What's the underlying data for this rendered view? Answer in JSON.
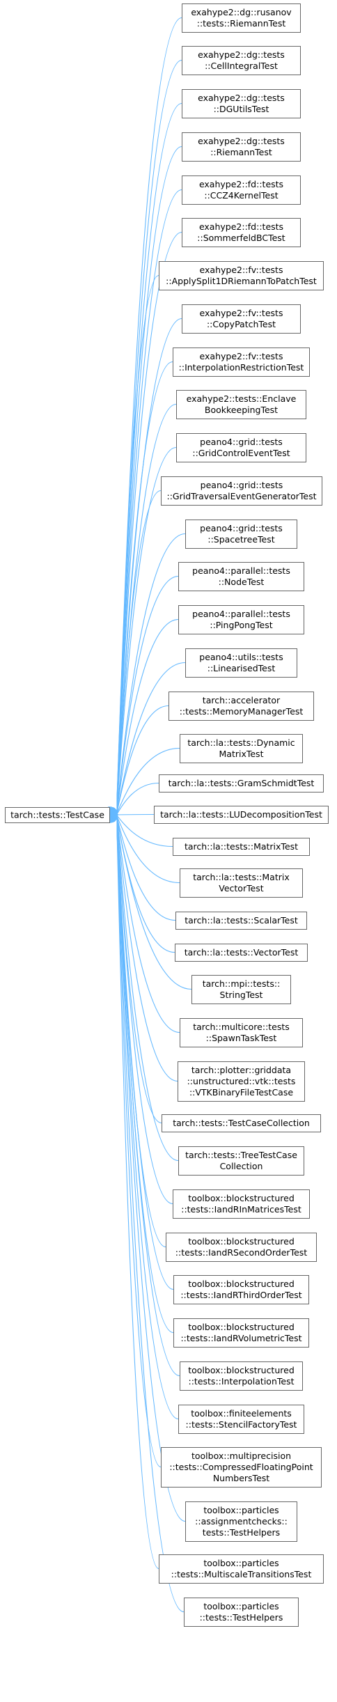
{
  "base_class": {
    "lines": [
      "tarch::tests::TestCase"
    ]
  },
  "derived_classes": [
    {
      "lines": [
        "exahype2::dg::rusanov",
        "::tests::RiemannTest"
      ]
    },
    {
      "lines": [
        "exahype2::dg::tests",
        "::CellIntegralTest"
      ]
    },
    {
      "lines": [
        "exahype2::dg::tests",
        "::DGUtilsTest"
      ]
    },
    {
      "lines": [
        "exahype2::dg::tests",
        "::RiemannTest"
      ]
    },
    {
      "lines": [
        "exahype2::fd::tests",
        "::CCZ4KernelTest"
      ]
    },
    {
      "lines": [
        "exahype2::fd::tests",
        "::SommerfeldBCTest"
      ]
    },
    {
      "lines": [
        "exahype2::fv::tests",
        "::ApplySplit1DRiemannToPatchTest"
      ]
    },
    {
      "lines": [
        "exahype2::fv::tests",
        "::CopyPatchTest"
      ]
    },
    {
      "lines": [
        "exahype2::fv::tests",
        "::InterpolationRestrictionTest"
      ]
    },
    {
      "lines": [
        "exahype2::tests::Enclave",
        "BookkeepingTest"
      ]
    },
    {
      "lines": [
        "peano4::grid::tests",
        "::GridControlEventTest"
      ]
    },
    {
      "lines": [
        "peano4::grid::tests",
        "::GridTraversalEventGeneratorTest"
      ]
    },
    {
      "lines": [
        "peano4::grid::tests",
        "::SpacetreeTest"
      ]
    },
    {
      "lines": [
        "peano4::parallel::tests",
        "::NodeTest"
      ]
    },
    {
      "lines": [
        "peano4::parallel::tests",
        "::PingPongTest"
      ]
    },
    {
      "lines": [
        "peano4::utils::tests",
        "::LinearisedTest"
      ]
    },
    {
      "lines": [
        "tarch::accelerator",
        "::tests::MemoryManagerTest"
      ]
    },
    {
      "lines": [
        "tarch::la::tests::Dynamic",
        "MatrixTest"
      ]
    },
    {
      "lines": [
        "tarch::la::tests::GramSchmidtTest"
      ]
    },
    {
      "lines": [
        "tarch::la::tests::LUDecompositionTest"
      ]
    },
    {
      "lines": [
        "tarch::la::tests::MatrixTest"
      ]
    },
    {
      "lines": [
        "tarch::la::tests::Matrix",
        "VectorTest"
      ]
    },
    {
      "lines": [
        "tarch::la::tests::ScalarTest"
      ]
    },
    {
      "lines": [
        "tarch::la::tests::VectorTest"
      ]
    },
    {
      "lines": [
        "tarch::mpi::tests::",
        "StringTest"
      ]
    },
    {
      "lines": [
        "tarch::multicore::tests",
        "::SpawnTaskTest"
      ]
    },
    {
      "lines": [
        "tarch::plotter::griddata",
        "::unstructured::vtk::tests",
        "::VTKBinaryFileTestCase"
      ]
    },
    {
      "lines": [
        "tarch::tests::TestCaseCollection"
      ]
    },
    {
      "lines": [
        "tarch::tests::TreeTestCase",
        "Collection"
      ]
    },
    {
      "lines": [
        "toolbox::blockstructured",
        "::tests::IandRInMatricesTest"
      ]
    },
    {
      "lines": [
        "toolbox::blockstructured",
        "::tests::IandRSecondOrderTest"
      ]
    },
    {
      "lines": [
        "toolbox::blockstructured",
        "::tests::IandRThirdOrderTest"
      ]
    },
    {
      "lines": [
        "toolbox::blockstructured",
        "::tests::IandRVolumetricTest"
      ]
    },
    {
      "lines": [
        "toolbox::blockstructured",
        "::tests::InterpolationTest"
      ]
    },
    {
      "lines": [
        "toolbox::finiteelements",
        "::tests::StencilFactoryTest"
      ]
    },
    {
      "lines": [
        "toolbox::multiprecision",
        "::tests::CompressedFloatingPoint",
        "NumbersTest"
      ]
    },
    {
      "lines": [
        "toolbox::particles",
        "::assignmentchecks::",
        "tests::TestHelpers"
      ]
    },
    {
      "lines": [
        "toolbox::particles",
        "::tests::MultiscaleTransitionsTest"
      ]
    },
    {
      "lines": [
        "toolbox::particles",
        "::tests::TestHelpers"
      ]
    }
  ],
  "colors": {
    "edge": "#63b8ff",
    "node_border": "#666666",
    "background": "#ffffff"
  }
}
